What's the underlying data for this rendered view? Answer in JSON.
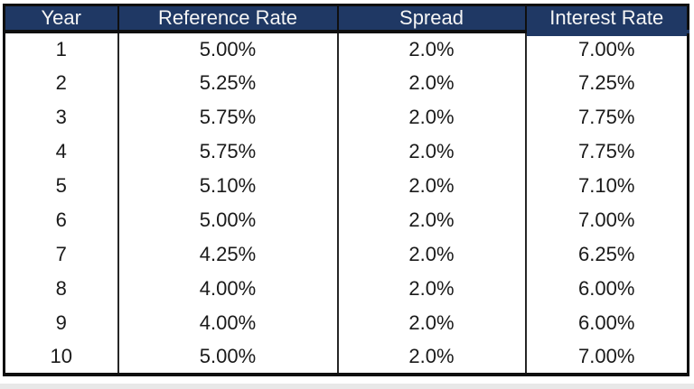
{
  "colors": {
    "header_bg": "#1f3864",
    "border_dark": "#0f0f0f",
    "grid_line": "#262626",
    "body_text": "#1a1a1a",
    "header_text": "#f5f5f5",
    "page_edge": "#e8e8e8"
  },
  "chart_data": {
    "type": "table",
    "title": "",
    "columns": [
      "Year",
      "Reference Rate",
      "Spread",
      "Interest Rate"
    ],
    "rows": [
      [
        "1",
        "5.00%",
        "2.0%",
        "7.00%"
      ],
      [
        "2",
        "5.25%",
        "2.0%",
        "7.25%"
      ],
      [
        "3",
        "5.75%",
        "2.0%",
        "7.75%"
      ],
      [
        "4",
        "5.75%",
        "2.0%",
        "7.75%"
      ],
      [
        "5",
        "5.10%",
        "2.0%",
        "7.10%"
      ],
      [
        "6",
        "5.00%",
        "2.0%",
        "7.00%"
      ],
      [
        "7",
        "4.25%",
        "2.0%",
        "6.25%"
      ],
      [
        "8",
        "4.00%",
        "2.0%",
        "6.00%"
      ],
      [
        "9",
        "4.00%",
        "2.0%",
        "6.00%"
      ],
      [
        "10",
        "5.00%",
        "2.0%",
        "7.00%"
      ]
    ],
    "x": [
      1,
      2,
      3,
      4,
      5,
      6,
      7,
      8,
      9,
      10
    ],
    "xlabel": "Year",
    "series": [
      {
        "name": "Reference Rate",
        "unit": "%",
        "values": [
          5.0,
          5.25,
          5.75,
          5.75,
          5.1,
          5.0,
          4.25,
          4.0,
          4.0,
          5.0
        ]
      },
      {
        "name": "Spread",
        "unit": "%",
        "values": [
          2.0,
          2.0,
          2.0,
          2.0,
          2.0,
          2.0,
          2.0,
          2.0,
          2.0,
          2.0
        ]
      },
      {
        "name": "Interest Rate",
        "unit": "%",
        "values": [
          7.0,
          7.25,
          7.75,
          7.75,
          7.1,
          7.0,
          6.25,
          6.0,
          6.0,
          7.0
        ]
      }
    ]
  }
}
